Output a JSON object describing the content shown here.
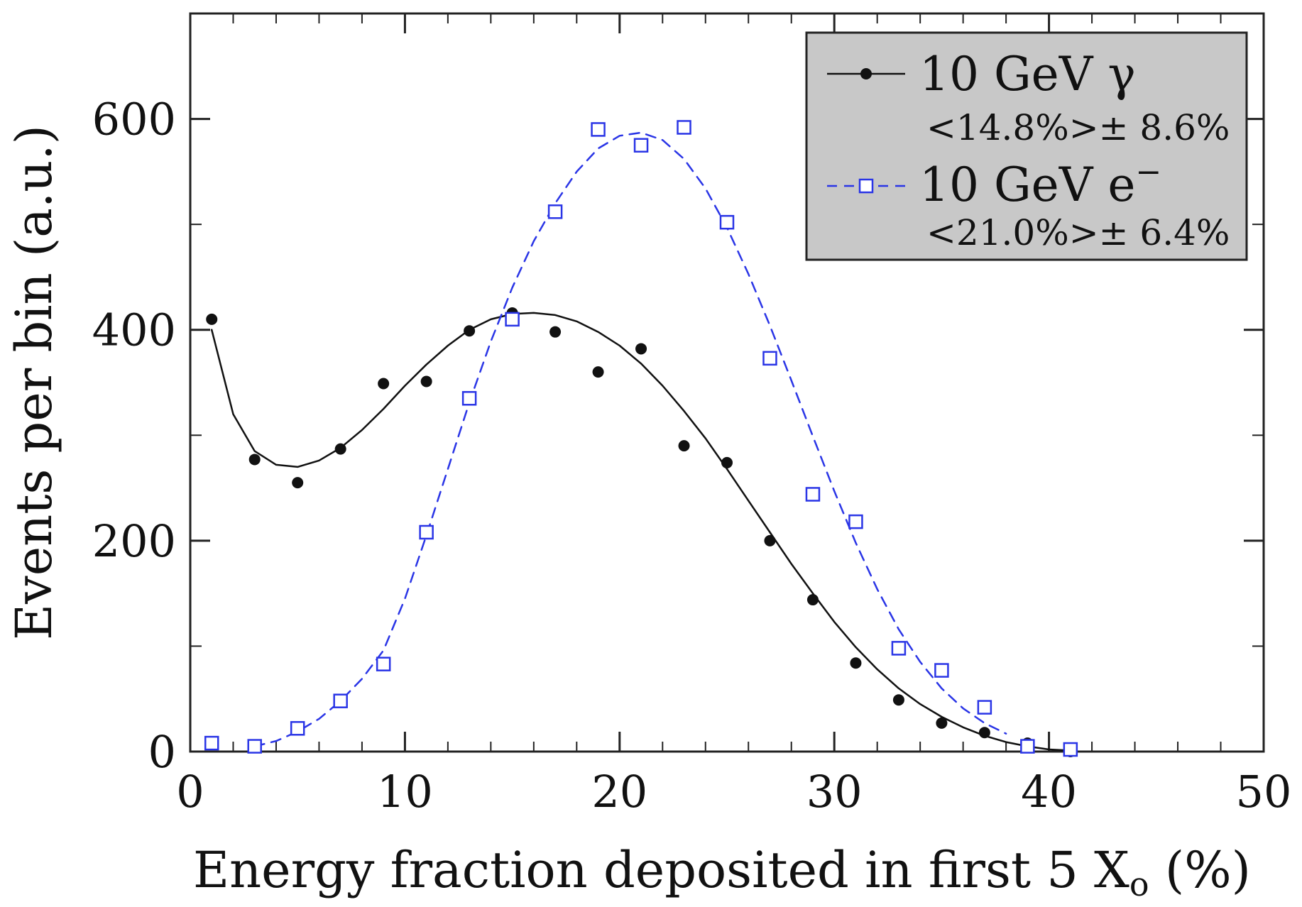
{
  "chart_data": {
    "type": "scatter",
    "title": "",
    "xlabel": "Energy fraction deposited in first 5 X",
    "xlabel_subscript": "o",
    "xlabel_suffix": " (%)",
    "ylabel": "Events per bin (a.u.)",
    "xlim": [
      0,
      50
    ],
    "ylim": [
      0,
      700
    ],
    "x_ticks": [
      0,
      10,
      20,
      30,
      40,
      50
    ],
    "y_ticks": [
      0,
      200,
      400,
      600
    ],
    "y_minor_ticks": [
      100,
      300,
      500,
      700
    ],
    "x_tick_labels": [
      "0",
      "10",
      "20",
      "30",
      "40",
      "50"
    ],
    "y_tick_labels": [
      "0",
      "200",
      "400",
      "600"
    ],
    "grid": false,
    "legend_position": "top-right",
    "series": [
      {
        "name": "10 GeV γ",
        "annotation": "<14.8%>± 8.6%",
        "marker": "filled-circle",
        "line_style": "solid",
        "color": "#111111",
        "x": [
          1,
          3,
          5,
          7,
          9,
          11,
          13,
          15,
          17,
          19,
          21,
          23,
          25,
          27,
          29,
          31,
          33,
          35,
          37,
          39,
          41
        ],
        "y": [
          410,
          277,
          255,
          287,
          349,
          351,
          399,
          416,
          398,
          360,
          382,
          290,
          274,
          200,
          144,
          84,
          49,
          27,
          18,
          8,
          0
        ],
        "fit_x": [
          1,
          2,
          3,
          4,
          5,
          6,
          7,
          8,
          9,
          10,
          11,
          12,
          13,
          14,
          15,
          16,
          17,
          18,
          19,
          20,
          21,
          22,
          23,
          24,
          25,
          26,
          27,
          28,
          29,
          30,
          31,
          32,
          33,
          34,
          35,
          36,
          37,
          38,
          39,
          40,
          41
        ],
        "fit_y": [
          400,
          320,
          285,
          272,
          270,
          276,
          288,
          305,
          325,
          347,
          367,
          385,
          400,
          410,
          415,
          416,
          414,
          408,
          398,
          385,
          368,
          347,
          323,
          297,
          268,
          238,
          208,
          178,
          150,
          123,
          99,
          78,
          60,
          45,
          33,
          23,
          15,
          9,
          5,
          2,
          1
        ]
      },
      {
        "name": "10 GeV e",
        "name_superscript": "−",
        "annotation": "<21.0%>± 6.4%",
        "marker": "open-square",
        "line_style": "dashed",
        "color": "#2a35e6",
        "x": [
          1,
          3,
          5,
          7,
          9,
          11,
          13,
          15,
          17,
          19,
          21,
          23,
          25,
          27,
          29,
          31,
          33,
          35,
          37,
          39,
          41
        ],
        "y": [
          8,
          5,
          22,
          48,
          83,
          208,
          335,
          410,
          512,
          590,
          575,
          592,
          502,
          373,
          244,
          218,
          98,
          77,
          42,
          5,
          2
        ],
        "fit_x": [
          3,
          4,
          5,
          6,
          7,
          8,
          9,
          10,
          11,
          12,
          13,
          14,
          15,
          16,
          17,
          18,
          19,
          20,
          21,
          22,
          23,
          24,
          25,
          26,
          27,
          28,
          29,
          30,
          31,
          32,
          33,
          34,
          35,
          36,
          37,
          38
        ],
        "fit_y": [
          5,
          10,
          19,
          31,
          48,
          69,
          96,
          145,
          205,
          268,
          331,
          389,
          440,
          484,
          520,
          550,
          572,
          584,
          587,
          580,
          562,
          534,
          497,
          453,
          404,
          352,
          299,
          247,
          198,
          154,
          116,
          85,
          60,
          41,
          27,
          17
        ]
      }
    ]
  }
}
